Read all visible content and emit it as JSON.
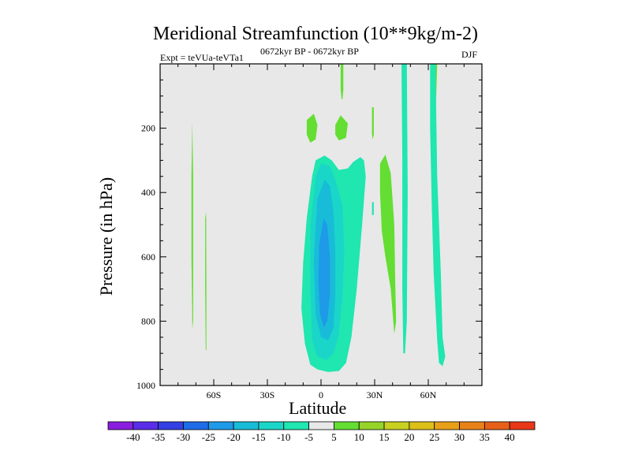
{
  "chart_data": {
    "type": "contour",
    "title": "Meridional Streamfunction (10**9kg/m-2)",
    "subtitle_left": "Expt = teVUa-teVTa1",
    "subtitle_center": "0672kyr BP - 0672kyr BP",
    "subtitle_right": "DJF",
    "xlabel": "Latitude",
    "ylabel": "Pressure (in hPa)",
    "xlim": [
      -90,
      90
    ],
    "ylim": [
      1000,
      0
    ],
    "x_ticks": [
      {
        "value": -60,
        "label": "60S"
      },
      {
        "value": -30,
        "label": "30S"
      },
      {
        "value": 0,
        "label": "0"
      },
      {
        "value": 30,
        "label": "30N"
      },
      {
        "value": 60,
        "label": "60N"
      }
    ],
    "y_ticks": [
      {
        "value": 200,
        "label": "200"
      },
      {
        "value": 400,
        "label": "400"
      },
      {
        "value": 600,
        "label": "600"
      },
      {
        "value": 800,
        "label": "800"
      },
      {
        "value": 1000,
        "label": "1000"
      }
    ],
    "background_color": "#e8e8e8",
    "colorbar": {
      "labels": [
        "-40",
        "-35",
        "-30",
        "-25",
        "-20",
        "-15",
        "-10",
        "-5",
        "5",
        "10",
        "15",
        "20",
        "25",
        "30",
        "35",
        "40"
      ],
      "colors": [
        "#8a1ee0",
        "#5a2ee8",
        "#3440e4",
        "#1e6ce8",
        "#1e9ae8",
        "#18bcd8",
        "#1ad6c8",
        "#20e6b0",
        "#e8e8e8",
        "#64de32",
        "#96d428",
        "#c8d020",
        "#dcc018",
        "#e8a018",
        "#e88218",
        "#e86018",
        "#e83818"
      ]
    },
    "contours": [
      {
        "level": 5,
        "color": "#64de32",
        "points": [
          [
            -72,
            800
          ],
          [
            -72.5,
            600
          ],
          [
            -72.5,
            350
          ],
          [
            -72,
            180
          ],
          [
            -71.5,
            350
          ],
          [
            -71.5,
            600
          ],
          [
            -71.5,
            800
          ],
          [
            -72,
            825
          ]
        ]
      },
      {
        "level": 5,
        "color": "#64de32",
        "points": [
          [
            -64.5,
            890
          ],
          [
            -64.8,
            700
          ],
          [
            -64.8,
            480
          ],
          [
            -64.3,
            460
          ],
          [
            -64.1,
            700
          ],
          [
            -64.1,
            890
          ]
        ]
      },
      {
        "level": 5,
        "color": "#64de32",
        "points": [
          [
            -8,
            175
          ],
          [
            -4,
            155
          ],
          [
            -2,
            190
          ],
          [
            -3,
            235
          ],
          [
            -6,
            245
          ],
          [
            -8,
            220
          ]
        ]
      },
      {
        "level": 5,
        "color": "#64de32",
        "points": [
          [
            8,
            190
          ],
          [
            11,
            160
          ],
          [
            15,
            185
          ],
          [
            14,
            230
          ],
          [
            10,
            238
          ],
          [
            8,
            220
          ]
        ]
      },
      {
        "level": 5,
        "color": "#64de32",
        "points": [
          [
            11,
            0
          ],
          [
            12.5,
            0
          ],
          [
            12.5,
            80
          ],
          [
            12,
            110
          ],
          [
            11.5,
            110
          ],
          [
            11,
            80
          ]
        ]
      },
      {
        "level": 5,
        "color": "#64de32",
        "points": [
          [
            33,
            310
          ],
          [
            36,
            282
          ],
          [
            39,
            340
          ],
          [
            41,
            500
          ],
          [
            41.5,
            680
          ],
          [
            42,
            800
          ],
          [
            41,
            840
          ],
          [
            39,
            700
          ],
          [
            36,
            600
          ],
          [
            34,
            520
          ],
          [
            33,
            400
          ]
        ]
      },
      {
        "level": 5,
        "color": "#64de32",
        "points": [
          [
            63,
            0
          ],
          [
            65,
            0
          ],
          [
            64.5,
            90
          ],
          [
            64,
            150
          ],
          [
            63,
            130
          ],
          [
            62.5,
            60
          ]
        ]
      },
      {
        "level": 5,
        "color": "#64de32",
        "points": [
          [
            28.5,
            135
          ],
          [
            29.5,
            135
          ],
          [
            29.5,
            220
          ],
          [
            29,
            235
          ],
          [
            28.5,
            220
          ]
        ]
      },
      {
        "level": -5,
        "color": "#20e6b0",
        "points": [
          [
            -5,
            350
          ],
          [
            -3,
            300
          ],
          [
            2,
            285
          ],
          [
            6,
            300
          ],
          [
            10,
            330
          ],
          [
            15,
            325
          ],
          [
            18,
            305
          ],
          [
            22,
            290
          ],
          [
            24,
            300
          ],
          [
            25,
            350
          ],
          [
            23,
            500
          ],
          [
            20,
            700
          ],
          [
            17,
            850
          ],
          [
            14,
            930
          ],
          [
            10,
            955
          ],
          [
            4,
            958
          ],
          [
            -2,
            950
          ],
          [
            -6,
            935
          ],
          [
            -9,
            870
          ],
          [
            -11,
            760
          ],
          [
            -10,
            620
          ],
          [
            -8,
            480
          ]
        ]
      },
      {
        "level": -5,
        "color": "#20e6b0",
        "points": [
          [
            45,
            0
          ],
          [
            48,
            0
          ],
          [
            48.5,
            400
          ],
          [
            48,
            800
          ],
          [
            47,
            900
          ],
          [
            46,
            900
          ],
          [
            45.5,
            700
          ],
          [
            45.5,
            300
          ]
        ]
      },
      {
        "level": -5,
        "color": "#20e6b0",
        "points": [
          [
            61,
            0
          ],
          [
            64,
            0
          ],
          [
            65,
            350
          ],
          [
            67,
            650
          ],
          [
            68,
            850
          ],
          [
            69.5,
            910
          ],
          [
            68,
            940
          ],
          [
            66,
            930
          ],
          [
            65,
            860
          ],
          [
            63,
            650
          ],
          [
            62,
            450
          ],
          [
            61,
            200
          ]
        ]
      },
      {
        "level": -5,
        "color": "#20e6b0",
        "points": [
          [
            28.5,
            430
          ],
          [
            29.5,
            430
          ],
          [
            29.5,
            470
          ],
          [
            28.5,
            470
          ]
        ]
      },
      {
        "level": -10,
        "color": "#1ad6c8",
        "points": [
          [
            -3,
            350
          ],
          [
            0,
            310
          ],
          [
            5,
            318
          ],
          [
            8,
            360
          ],
          [
            12,
            440
          ],
          [
            13,
            580
          ],
          [
            12,
            720
          ],
          [
            10,
            840
          ],
          [
            7,
            900
          ],
          [
            3,
            920
          ],
          [
            -2,
            910
          ],
          [
            -5,
            860
          ],
          [
            -6,
            700
          ],
          [
            -6,
            500
          ]
        ]
      },
      {
        "level": -15,
        "color": "#18bcd8",
        "points": [
          [
            -2,
            420
          ],
          [
            2,
            360
          ],
          [
            5,
            380
          ],
          [
            7,
            460
          ],
          [
            8,
            580
          ],
          [
            8,
            720
          ],
          [
            7,
            820
          ],
          [
            4,
            860
          ],
          [
            0,
            850
          ],
          [
            -3,
            780
          ],
          [
            -4,
            620
          ],
          [
            -3,
            500
          ]
        ]
      },
      {
        "level": -20,
        "color": "#1e9ae8",
        "points": [
          [
            -1,
            560
          ],
          [
            1.5,
            480
          ],
          [
            3.5,
            500
          ],
          [
            5,
            600
          ],
          [
            5,
            720
          ],
          [
            3.5,
            800
          ],
          [
            1.5,
            820
          ],
          [
            -0.5,
            780
          ],
          [
            -1.5,
            680
          ]
        ]
      }
    ]
  }
}
